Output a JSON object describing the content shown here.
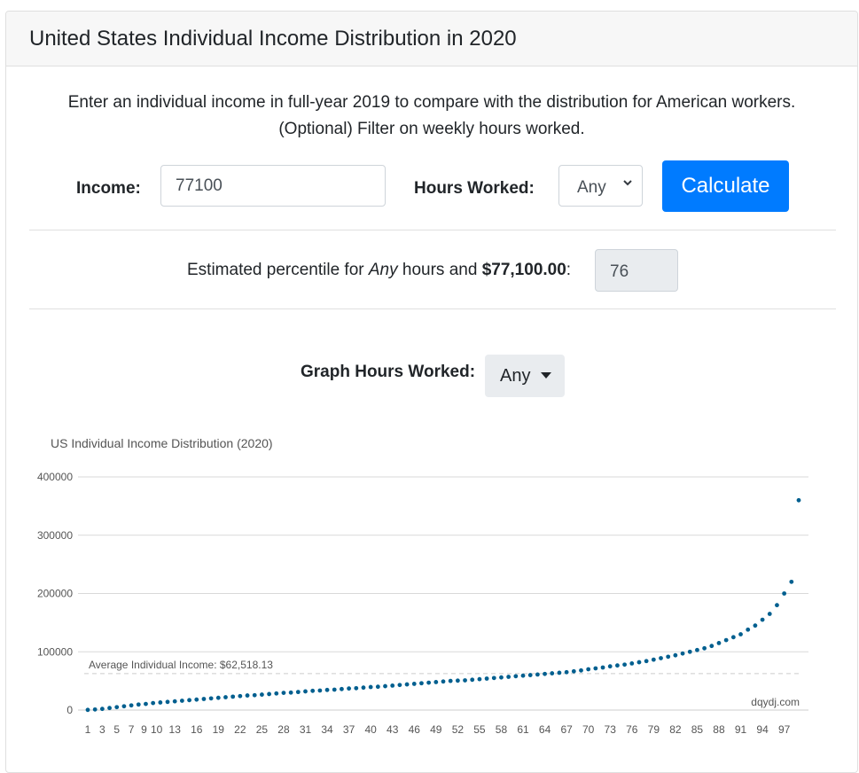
{
  "header": {
    "title": "United States Individual Income Distribution in 2020"
  },
  "intro": {
    "line1": "Enter an individual income in full-year 2019 to compare with the distribution for American workers.",
    "line2": "(Optional) Filter on weekly hours worked."
  },
  "form": {
    "income_label": "Income:",
    "income_value": "77100",
    "hours_label": "Hours Worked:",
    "hours_value": "Any",
    "calculate_label": "Calculate"
  },
  "result": {
    "prefix": "Estimated percentile for ",
    "hours": "Any",
    "middle": " hours and ",
    "amount": "$77,100.00",
    "suffix": ":",
    "percentile": "76"
  },
  "graph_controls": {
    "label": "Graph Hours Worked:",
    "value": "Any"
  },
  "colors": {
    "accent": "#007bff",
    "series": "#005f8f",
    "grid": "#d9d9d9"
  },
  "chart_data": {
    "type": "line",
    "title": "US Individual Income Distribution (2020)",
    "xlabel": "",
    "ylabel": "",
    "ylim": [
      0,
      400000
    ],
    "yticks": [
      0,
      100000,
      200000,
      300000,
      400000
    ],
    "x_tick_labels": [
      "1",
      "3",
      "5",
      "7",
      "9",
      "10",
      "13",
      "16",
      "19",
      "22",
      "25",
      "28",
      "31",
      "34",
      "37",
      "40",
      "43",
      "46",
      "49",
      "52",
      "55",
      "58",
      "61",
      "64",
      "67",
      "70",
      "73",
      "76",
      "79",
      "82",
      "85",
      "88",
      "91",
      "94",
      "97"
    ],
    "average": {
      "label": "Average Individual Income: $62,518.13",
      "value": 62518.13
    },
    "watermark": "dqydj.com",
    "series": [
      {
        "x": [
          1,
          2,
          3,
          4,
          5,
          6,
          7,
          8,
          9,
          10,
          11,
          12,
          13,
          14,
          15,
          16,
          17,
          18,
          19,
          20,
          21,
          22,
          23,
          24,
          25,
          26,
          27,
          28,
          29,
          30,
          31,
          32,
          33,
          34,
          35,
          36,
          37,
          38,
          39,
          40,
          41,
          42,
          43,
          44,
          45,
          46,
          47,
          48,
          49,
          50,
          51,
          52,
          53,
          54,
          55,
          56,
          57,
          58,
          59,
          60,
          61,
          62,
          63,
          64,
          65,
          66,
          67,
          68,
          69,
          70,
          71,
          72,
          73,
          74,
          75,
          76,
          77,
          78,
          79,
          80,
          81,
          82,
          83,
          84,
          85,
          86,
          87,
          88,
          89,
          90,
          91,
          92,
          93,
          94,
          95,
          96,
          97,
          98,
          99
        ],
        "y": [
          300,
          1000,
          2000,
          3500,
          5000,
          6500,
          8000,
          9500,
          10500,
          12000,
          13000,
          14000,
          15000,
          16000,
          17000,
          18000,
          19000,
          20000,
          21000,
          22000,
          23000,
          24000,
          25000,
          25500,
          26500,
          27500,
          28500,
          29500,
          30000,
          31000,
          32000,
          33000,
          33500,
          34500,
          35000,
          36000,
          37000,
          37500,
          38500,
          39500,
          40000,
          41000,
          42000,
          43000,
          44000,
          45000,
          46000,
          47000,
          48000,
          49000,
          50000,
          50500,
          51000,
          52000,
          53000,
          54000,
          55000,
          56000,
          57000,
          58000,
          59000,
          60000,
          61000,
          62000,
          63000,
          64000,
          65000,
          66500,
          68000,
          70000,
          71500,
          73000,
          75000,
          76500,
          78000,
          80000,
          82000,
          84000,
          86500,
          89000,
          91500,
          94000,
          97000,
          100000,
          103000,
          106000,
          110000,
          115000,
          120000,
          125000,
          130000,
          138000,
          145000,
          155000,
          165000,
          180000,
          200000,
          220000,
          360000
        ]
      }
    ]
  }
}
